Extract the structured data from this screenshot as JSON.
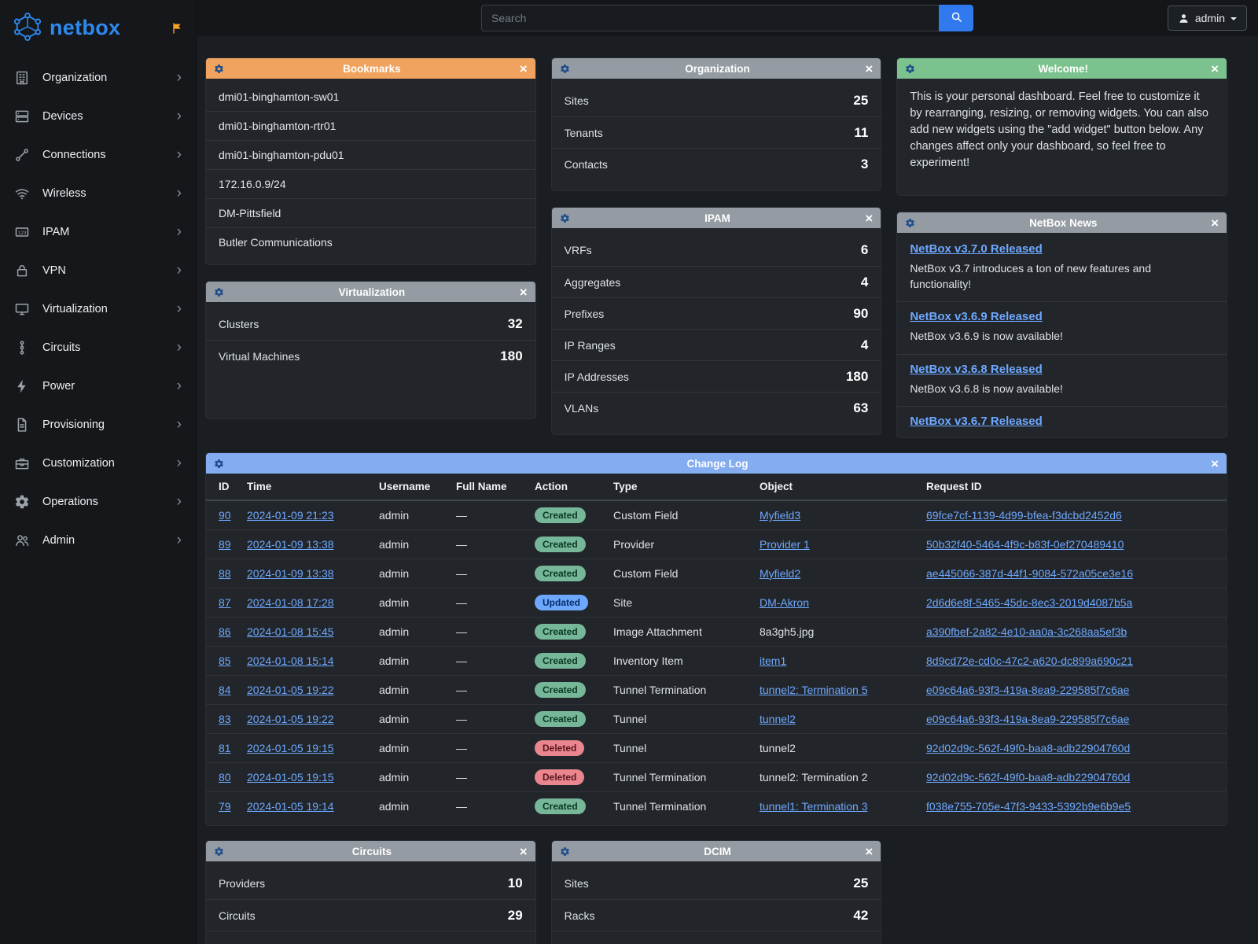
{
  "brand": {
    "logo_text": "netbox"
  },
  "topbar": {
    "search_placeholder": "Search",
    "user_label": "admin"
  },
  "sidebar": {
    "items": [
      {
        "label": "Organization",
        "icon": "building-icon"
      },
      {
        "label": "Devices",
        "icon": "server-icon"
      },
      {
        "label": "Connections",
        "icon": "cable-icon"
      },
      {
        "label": "Wireless",
        "icon": "wifi-icon"
      },
      {
        "label": "IPAM",
        "icon": "counter-icon"
      },
      {
        "label": "VPN",
        "icon": "lock-icon"
      },
      {
        "label": "Virtualization",
        "icon": "monitor-icon"
      },
      {
        "label": "Circuits",
        "icon": "transit-icon"
      },
      {
        "label": "Power",
        "icon": "lightning-icon"
      },
      {
        "label": "Provisioning",
        "icon": "document-icon"
      },
      {
        "label": "Customization",
        "icon": "toolbox-icon"
      },
      {
        "label": "Operations",
        "icon": "gear-icon"
      },
      {
        "label": "Admin",
        "icon": "users-icon"
      }
    ]
  },
  "widgets": {
    "bookmarks": {
      "title": "Bookmarks",
      "accent": "#f0a35e",
      "items": [
        "dmi01-binghamton-sw01",
        "dmi01-binghamton-rtr01",
        "dmi01-binghamton-pdu01",
        "172.16.0.9/24",
        "DM-Pittsfield",
        "Butler Communications"
      ]
    },
    "organization": {
      "title": "Organization",
      "accent": "#949ba2",
      "stats": [
        {
          "label": "Sites",
          "value": "25"
        },
        {
          "label": "Tenants",
          "value": "11"
        },
        {
          "label": "Contacts",
          "value": "3"
        }
      ]
    },
    "welcome": {
      "title": "Welcome!",
      "accent": "#7bc28e",
      "text": "This is your personal dashboard. Feel free to customize it by rearranging, resizing, or removing widgets. You can also add new widgets using the \"add widget\" button below. Any changes affect only your dashboard, so feel free to experiment!"
    },
    "virtualization": {
      "title": "Virtualization",
      "accent": "#949ba2",
      "stats": [
        {
          "label": "Clusters",
          "value": "32"
        },
        {
          "label": "Virtual Machines",
          "value": "180"
        }
      ]
    },
    "ipam": {
      "title": "IPAM",
      "accent": "#949ba2",
      "stats": [
        {
          "label": "VRFs",
          "value": "6"
        },
        {
          "label": "Aggregates",
          "value": "4"
        },
        {
          "label": "Prefixes",
          "value": "90"
        },
        {
          "label": "IP Ranges",
          "value": "4"
        },
        {
          "label": "IP Addresses",
          "value": "180"
        },
        {
          "label": "VLANs",
          "value": "63"
        }
      ]
    },
    "news": {
      "title": "NetBox News",
      "accent": "#949ba2",
      "items": [
        {
          "title": "NetBox v3.7.0 Released",
          "desc": "NetBox v3.7 introduces a ton of new features and functionality!"
        },
        {
          "title": "NetBox v3.6.9 Released",
          "desc": "NetBox v3.6.9 is now available!"
        },
        {
          "title": "NetBox v3.6.8 Released",
          "desc": "NetBox v3.6.8 is now available!"
        },
        {
          "title": "NetBox v3.6.7 Released",
          "desc": ""
        }
      ]
    },
    "changelog": {
      "title": "Change Log",
      "accent": "#83acf1",
      "columns": [
        "ID",
        "Time",
        "Username",
        "Full Name",
        "Action",
        "Type",
        "Object",
        "Request ID"
      ],
      "badge_colors": {
        "Created": {
          "bg": "#75b798",
          "fg": "#0a3622"
        },
        "Updated": {
          "bg": "#6ea8fe",
          "fg": "#052c65"
        },
        "Deleted": {
          "bg": "#ea868f",
          "fg": "#58151c"
        }
      },
      "rows": [
        {
          "id": "90",
          "time": "2024-01-09 21:23",
          "username": "admin",
          "full_name": "—",
          "action": "Created",
          "type": "Custom Field",
          "object": "Myfield3",
          "object_link": true,
          "request_id": "69fce7cf-1139-4d99-bfea-f3dcbd2452d6"
        },
        {
          "id": "89",
          "time": "2024-01-09 13:38",
          "username": "admin",
          "full_name": "—",
          "action": "Created",
          "type": "Provider",
          "object": "Provider 1",
          "object_link": true,
          "request_id": "50b32f40-5464-4f9c-b83f-0ef270489410"
        },
        {
          "id": "88",
          "time": "2024-01-09 13:38",
          "username": "admin",
          "full_name": "—",
          "action": "Created",
          "type": "Custom Field",
          "object": "Myfield2",
          "object_link": true,
          "request_id": "ae445066-387d-44f1-9084-572a05ce3e16"
        },
        {
          "id": "87",
          "time": "2024-01-08 17:28",
          "username": "admin",
          "full_name": "—",
          "action": "Updated",
          "type": "Site",
          "object": "DM-Akron",
          "object_link": true,
          "request_id": "2d6d6e8f-5465-45dc-8ec3-2019d4087b5a"
        },
        {
          "id": "86",
          "time": "2024-01-08 15:45",
          "username": "admin",
          "full_name": "—",
          "action": "Created",
          "type": "Image Attachment",
          "object": "8a3gh5.jpg",
          "object_link": false,
          "request_id": "a390fbef-2a82-4e10-aa0a-3c268aa5ef3b"
        },
        {
          "id": "85",
          "time": "2024-01-08 15:14",
          "username": "admin",
          "full_name": "—",
          "action": "Created",
          "type": "Inventory Item",
          "object": "item1",
          "object_link": true,
          "request_id": "8d9cd72e-cd0c-47c2-a620-dc899a690c21"
        },
        {
          "id": "84",
          "time": "2024-01-05 19:22",
          "username": "admin",
          "full_name": "—",
          "action": "Created",
          "type": "Tunnel Termination",
          "object": "tunnel2: Termination 5",
          "object_link": true,
          "request_id": "e09c64a6-93f3-419a-8ea9-229585f7c6ae"
        },
        {
          "id": "83",
          "time": "2024-01-05 19:22",
          "username": "admin",
          "full_name": "—",
          "action": "Created",
          "type": "Tunnel",
          "object": "tunnel2",
          "object_link": true,
          "request_id": "e09c64a6-93f3-419a-8ea9-229585f7c6ae"
        },
        {
          "id": "81",
          "time": "2024-01-05 19:15",
          "username": "admin",
          "full_name": "—",
          "action": "Deleted",
          "type": "Tunnel",
          "object": "tunnel2",
          "object_link": false,
          "request_id": "92d02d9c-562f-49f0-baa8-adb22904760d"
        },
        {
          "id": "80",
          "time": "2024-01-05 19:15",
          "username": "admin",
          "full_name": "—",
          "action": "Deleted",
          "type": "Tunnel Termination",
          "object": "tunnel2: Termination 2",
          "object_link": false,
          "request_id": "92d02d9c-562f-49f0-baa8-adb22904760d"
        },
        {
          "id": "79",
          "time": "2024-01-05 19:14",
          "username": "admin",
          "full_name": "—",
          "action": "Created",
          "type": "Tunnel Termination",
          "object": "tunnel1: Termination 3",
          "object_link": true,
          "request_id": "f038e755-705e-47f3-9433-5392b9e6b9e5"
        }
      ]
    },
    "circuits": {
      "title": "Circuits",
      "accent": "#949ba2",
      "stats": [
        {
          "label": "Providers",
          "value": "10"
        },
        {
          "label": "Circuits",
          "value": "29"
        }
      ]
    },
    "dcim": {
      "title": "DCIM",
      "accent": "#949ba2",
      "stats": [
        {
          "label": "Sites",
          "value": "25"
        },
        {
          "label": "Racks",
          "value": "42"
        }
      ]
    }
  }
}
